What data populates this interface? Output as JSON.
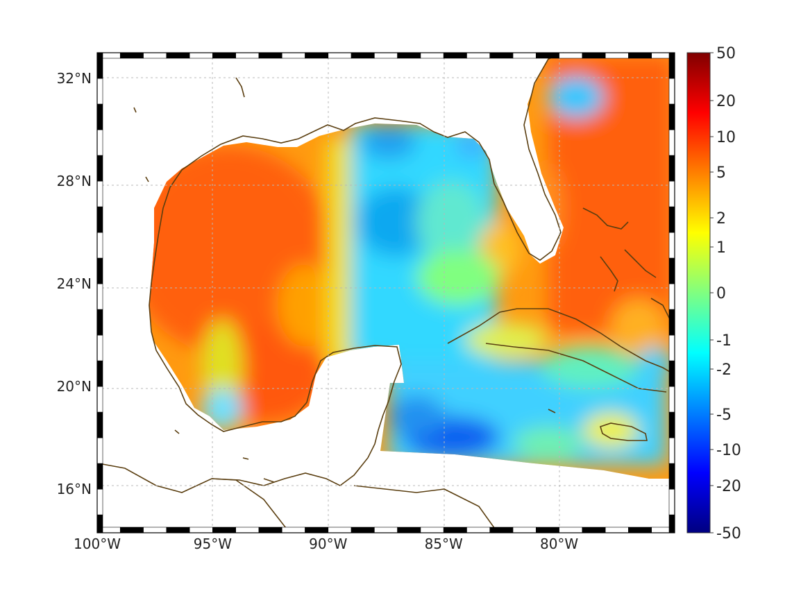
{
  "map": {
    "lon_range": [
      -100,
      -75
    ],
    "lat_range": [
      14.3,
      33
    ],
    "x_ticks": [
      {
        "lon": -100,
        "label": "100°W"
      },
      {
        "lon": -95,
        "label": "95°W"
      },
      {
        "lon": -90,
        "label": "90°W"
      },
      {
        "lon": -85,
        "label": "85°W"
      },
      {
        "lon": -80,
        "label": "80°W"
      }
    ],
    "y_ticks": [
      {
        "lat": 32,
        "label": "32°N"
      },
      {
        "lat": 28,
        "label": "28°N"
      },
      {
        "lat": 24,
        "label": "24°N"
      },
      {
        "lat": 20,
        "label": "20°N"
      },
      {
        "lat": 16,
        "label": "16°N"
      }
    ],
    "grid": true,
    "coastline_color": "#5a3e10",
    "land_color": "#ffffff"
  },
  "colorbar": {
    "colormap": "jet",
    "range": [
      -50,
      50
    ],
    "ticks": [
      "50",
      "20",
      "10",
      "5",
      "2",
      "1",
      "0",
      "-1",
      "-2",
      "-5",
      "-10",
      "-20",
      "-50"
    ]
  }
}
